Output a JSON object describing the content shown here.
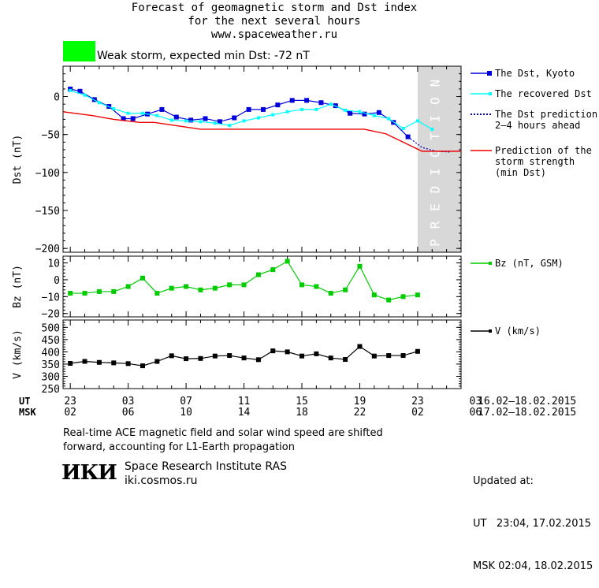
{
  "header": {
    "title_line1": "Forecast of geomagnetic storm and Dst index",
    "title_line2": "for the next several hours",
    "url": "www.spaceweather.ru"
  },
  "storm": {
    "label": "Weak storm, expected min Dst: -72 nT",
    "color": "#00ff00"
  },
  "chart_data": [
    {
      "type": "line",
      "ylabel": "Dst (nT)",
      "ylim": [
        -205,
        40
      ],
      "yticks": [
        0,
        -50,
        -100,
        -150,
        -200
      ],
      "prediction_label": "PREDICTION",
      "prediction_x_range": [
        24.0,
        27.0
      ],
      "series": [
        {
          "name": "The Dst, Kyoto",
          "color": "#0000dd",
          "x": [
            0,
            0.67,
            1.67,
            2.67,
            3.67,
            4.33,
            5.33,
            6.33,
            7.33,
            8.33,
            9.33,
            10.33,
            11.33,
            12.33,
            13.33,
            14.33,
            15.33,
            16.33,
            17.33,
            18.33,
            19.33,
            20.33,
            21.33,
            22.33,
            23.33
          ],
          "y": [
            10,
            7,
            -4,
            -13,
            -29,
            -29,
            -23,
            -17,
            -27,
            -31,
            -29,
            -33,
            -28,
            -17,
            -17,
            -11,
            -5,
            -5,
            -8,
            -12,
            -22,
            -23,
            -21,
            -34,
            -53
          ]
        },
        {
          "name": "The recovered Dst",
          "color": "#00ffff",
          "x": [
            0,
            1,
            2,
            3,
            4,
            5,
            6,
            7,
            8,
            9,
            10,
            11,
            12,
            13,
            14,
            15,
            16,
            17,
            18,
            19,
            20,
            21,
            22,
            23,
            24,
            25
          ],
          "y": [
            8,
            2,
            -8,
            -16,
            -22,
            -22,
            -25,
            -31,
            -32,
            -33,
            -35,
            -38,
            -32,
            -28,
            -24,
            -20,
            -17,
            -17,
            -10,
            -18,
            -20,
            -25,
            -29,
            -42,
            -32,
            -43
          ]
        },
        {
          "name": "The Dst prediction 2-4 hours ahead",
          "color": "#0000cc",
          "x": [
            23.33,
            24.3,
            25.3,
            26.2
          ],
          "y": [
            -53,
            -67,
            -72,
            -73
          ]
        },
        {
          "name": "Prediction of the storm strength (min Dst)",
          "color": "#ee0000",
          "x": [
            -0.5,
            1.5,
            3,
            4.8,
            5.8,
            9,
            13,
            17,
            19.5,
            20.3,
            21.8,
            23,
            24.3,
            27
          ],
          "y": [
            -20,
            -25,
            -30,
            -34,
            -34,
            -43,
            -43,
            -43,
            -43,
            -43,
            -49,
            -60,
            -72,
            -72
          ]
        }
      ]
    },
    {
      "type": "line",
      "ylabel": "Bz (nT)",
      "ylim": [
        -22,
        14
      ],
      "yticks": [
        10,
        0,
        -10,
        -20
      ],
      "series": [
        {
          "name": "Bz (nT, GSM)",
          "color": "#00cc00",
          "x": [
            0,
            1,
            2,
            3,
            4,
            5,
            6,
            7,
            8,
            9,
            10,
            11,
            12,
            13,
            14,
            15,
            16,
            17,
            18,
            19,
            20,
            21,
            22,
            23,
            24
          ],
          "y": [
            -8,
            -8,
            -7,
            -7,
            -4,
            1,
            -8,
            -5,
            -4,
            -6,
            -5,
            -3,
            -3,
            3,
            6,
            11,
            -3,
            -4,
            -8,
            -6,
            8,
            -9,
            -12,
            -10,
            -9
          ]
        }
      ]
    },
    {
      "type": "line",
      "ylabel": "V (km/s)",
      "ylim": [
        250,
        530
      ],
      "yticks": [
        500,
        450,
        400,
        350,
        300,
        250
      ],
      "series": [
        {
          "name": "V (km/s)",
          "color": "#000000",
          "x": [
            0,
            1,
            2,
            3,
            4,
            5,
            6,
            7,
            8,
            9,
            10,
            11,
            12,
            13,
            14,
            15,
            16,
            17,
            18,
            19,
            20,
            21,
            22,
            23,
            24
          ],
          "y": [
            353,
            361,
            357,
            355,
            352,
            343,
            361,
            384,
            372,
            373,
            383,
            385,
            375,
            368,
            404,
            400,
            383,
            392,
            375,
            369,
            422,
            383,
            385,
            385,
            402
          ]
        }
      ]
    }
  ],
  "time_axis": {
    "ut_label": "UT",
    "msk_label": "MSK",
    "ut_ticks": [
      "23",
      "03",
      "07",
      "11",
      "15",
      "19",
      "23",
      "03"
    ],
    "msk_ticks": [
      "02",
      "06",
      "10",
      "14",
      "18",
      "22",
      "02",
      "06"
    ],
    "ut_range": "16.02–18.02.2015",
    "msk_range": "17.02–18.02.2015"
  },
  "footnote": {
    "line1": "Real-time ACE magnetic field and solar wind speed are shifted",
    "line2": "forward, accounting for L1-Earth propagation"
  },
  "institute": {
    "logo_text": "ИКИ",
    "name": "Space Research Institute RAS",
    "site": "iki.cosmos.ru"
  },
  "updated": {
    "label": "Updated at:",
    "ut_line": "UT   23:04, 17.02.2015",
    "msk_line": "MSK 02:04, 18.02.2015"
  }
}
